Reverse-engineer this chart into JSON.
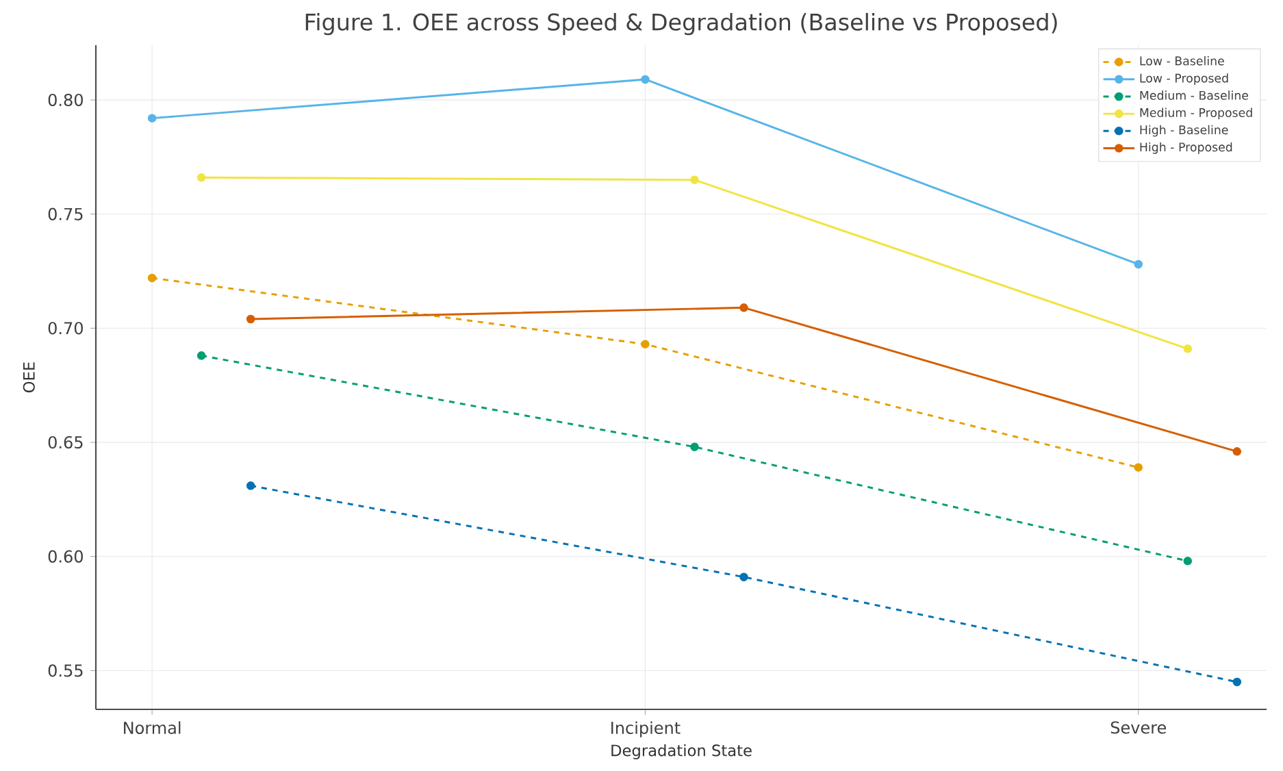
{
  "chart_data": {
    "type": "line",
    "title": "Figure 1. OEE across Speed & Degradation (Baseline vs Proposed)",
    "xlabel": "Degradation State",
    "ylabel": "OEE",
    "categories": [
      "Normal",
      "Incipient",
      "Severe"
    ],
    "ylim": [
      0.533,
      0.824
    ],
    "yticks": [
      {
        "value": 0.55,
        "label": "0.55"
      },
      {
        "value": 0.6,
        "label": "0.60"
      },
      {
        "value": 0.65,
        "label": "0.65"
      },
      {
        "value": 0.7,
        "label": "0.70"
      },
      {
        "value": 0.75,
        "label": "0.75"
      },
      {
        "value": 0.8,
        "label": "0.80"
      }
    ],
    "grid": true,
    "legend": "top right",
    "marker": "circle",
    "series": [
      {
        "name": "Low - Baseline",
        "color": "#e69f00",
        "line_style": "dashed",
        "values": [
          0.722,
          0.693,
          0.639
        ]
      },
      {
        "name": "Low - Proposed",
        "color": "#56b4e9",
        "line_style": "solid",
        "values": [
          0.792,
          0.809,
          0.728
        ]
      },
      {
        "name": "Medium - Baseline",
        "color": "#009e73",
        "line_style": "dashed",
        "values": [
          0.688,
          0.648,
          0.598
        ]
      },
      {
        "name": "Medium - Proposed",
        "color": "#f0e442",
        "line_style": "solid",
        "values": [
          0.766,
          0.765,
          0.691
        ]
      },
      {
        "name": "High - Baseline",
        "color": "#0072b2",
        "line_style": "dashed",
        "values": [
          0.631,
          0.591,
          0.545
        ]
      },
      {
        "name": "High - Proposed",
        "color": "#d55e00",
        "line_style": "solid",
        "values": [
          0.704,
          0.709,
          0.646
        ]
      }
    ]
  }
}
